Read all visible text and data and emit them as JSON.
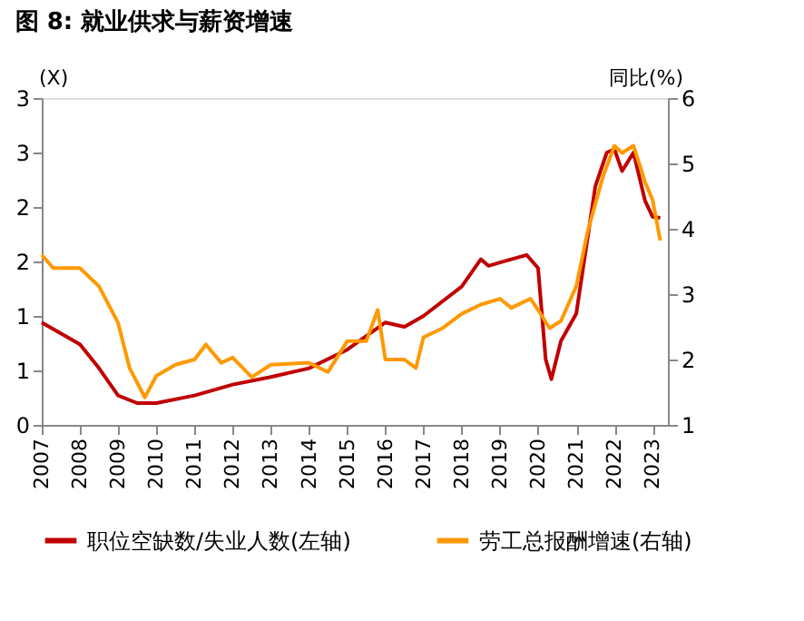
{
  "chart_data": {
    "type": "line",
    "title": "图 8: 就业供求与薪资增速",
    "ylabel": "(X)",
    "y2label": "同比(%)",
    "xlim": [
      2007,
      2023.4
    ],
    "xticks": [
      2007,
      2008,
      2009,
      2010,
      2011,
      2012,
      2013,
      2014,
      2015,
      2016,
      2017,
      2018,
      2019,
      2020,
      2021,
      2022,
      2023
    ],
    "ylim": [
      0,
      3
    ],
    "yticks": [
      0,
      {
        "value": 0.5,
        "label": "1"
      },
      1,
      {
        "value": 1.5,
        "label": "2"
      },
      2,
      {
        "value": 2.5,
        "label": "3"
      },
      3
    ],
    "y2lim": [
      1,
      6
    ],
    "y2ticks": [
      1,
      2,
      3,
      4,
      5,
      6
    ],
    "grid": false,
    "legend": "bottom",
    "marker": "none",
    "line_style": "solid",
    "series": [
      {
        "name": "职位空缺数/失业人数(左轴)",
        "color": "#c00000",
        "x": [
          2007.0,
          2008.0,
          2008.5,
          2009.0,
          2009.5,
          2010.0,
          2011.0,
          2012.0,
          2013.0,
          2014.0,
          2015.0,
          2016.0,
          2016.5,
          2017.0,
          2018.0,
          2018.5,
          2018.7,
          2019.0,
          2019.7,
          2020.0,
          2020.2,
          2020.35,
          2020.6,
          2021.0,
          2021.5,
          2021.8,
          2022.0,
          2022.2,
          2022.5,
          2022.8,
          2023.0,
          2023.2
        ],
        "values": [
          0.94,
          0.74,
          0.52,
          0.27,
          0.2,
          0.2,
          0.27,
          0.37,
          0.44,
          0.52,
          0.69,
          0.94,
          0.9,
          1.0,
          1.27,
          1.52,
          1.46,
          1.49,
          1.56,
          1.44,
          0.6,
          0.42,
          0.77,
          1.02,
          2.19,
          2.5,
          2.53,
          2.33,
          2.5,
          2.06,
          1.91,
          1.9
        ]
      },
      {
        "name": "劳工总报酬增速(右轴)",
        "color": "#ff9900",
        "axis": "y2",
        "x": [
          2007.0,
          2007.3,
          2008.0,
          2008.5,
          2009.0,
          2009.3,
          2009.7,
          2010.0,
          2010.5,
          2011.0,
          2011.3,
          2011.7,
          2012.0,
          2012.5,
          2013.0,
          2014.0,
          2014.5,
          2015.0,
          2015.5,
          2015.8,
          2016.0,
          2016.5,
          2016.8,
          2017.0,
          2017.5,
          2018.0,
          2018.5,
          2019.0,
          2019.3,
          2019.8,
          2020.0,
          2020.3,
          2020.6,
          2021.0,
          2021.3,
          2021.7,
          2022.0,
          2022.2,
          2022.5,
          2022.8,
          2023.0,
          2023.2
        ],
        "values": [
          3.6,
          3.4,
          3.4,
          3.12,
          2.56,
          1.87,
          1.42,
          1.75,
          1.92,
          2.0,
          2.23,
          1.95,
          2.03,
          1.73,
          1.92,
          1.95,
          1.81,
          2.28,
          2.28,
          2.76,
          2.0,
          2.0,
          1.87,
          2.34,
          2.48,
          2.7,
          2.84,
          2.93,
          2.79,
          2.93,
          2.76,
          2.48,
          2.59,
          3.12,
          3.96,
          4.8,
          5.27,
          5.16,
          5.27,
          4.72,
          4.44,
          3.82
        ]
      }
    ]
  }
}
